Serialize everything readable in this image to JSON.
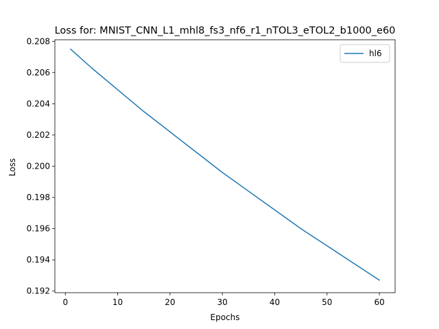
{
  "chart_data": {
    "type": "line",
    "title": "Loss for: MNIST_CNN_L1_mhl8_fs3_nf6_r1_nTOL3_eTOL2_b1000_e60",
    "xlabel": "Epochs",
    "ylabel": "Loss",
    "xlim": [
      -2,
      63
    ],
    "ylim": [
      0.1919,
      0.2081
    ],
    "xticks": [
      0,
      10,
      20,
      30,
      40,
      50,
      60
    ],
    "yticks": [
      0.192,
      0.194,
      0.196,
      0.198,
      0.2,
      0.202,
      0.204,
      0.206,
      0.208
    ],
    "yticks_labels": [
      "0.192",
      "0.194",
      "0.196",
      "0.198",
      "0.200",
      "0.202",
      "0.204",
      "0.206",
      "0.208"
    ],
    "grid": false,
    "legend_position": "top-right",
    "series": [
      {
        "name": "hl6",
        "color": "#1f77b4",
        "x": [
          1,
          5,
          10,
          15,
          20,
          25,
          30,
          35,
          40,
          45,
          50,
          55,
          60
        ],
        "values": [
          0.2075,
          0.2063,
          0.2049,
          0.2035,
          0.2022,
          0.2009,
          0.1996,
          0.1984,
          0.1972,
          0.196,
          0.1949,
          0.1938,
          0.1927
        ]
      }
    ]
  }
}
